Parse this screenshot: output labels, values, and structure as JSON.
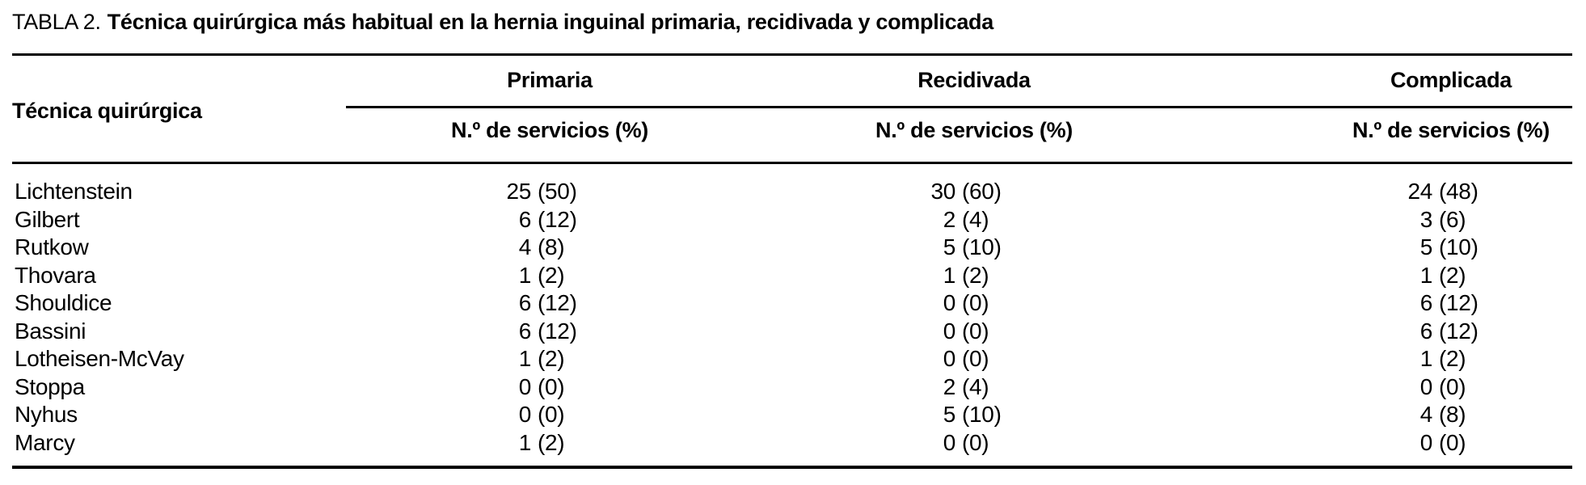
{
  "table": {
    "title_prefix": "TABLA 2.",
    "title_text": "Técnica quirúrgica más habitual en la hernia inguinal primaria, recidivada y complicada",
    "row_header": "Técnica quirúrgica",
    "groups": [
      {
        "label": "Primaria",
        "subheader": "N.º de servicios (%)"
      },
      {
        "label": "Recidivada",
        "subheader": "N.º de servicios (%)"
      },
      {
        "label": "Complicada",
        "subheader": "N.º de servicios (%)"
      }
    ],
    "rows": [
      {
        "name": "Lichtenstein",
        "primaria": {
          "n": "25",
          "pct": "(50)"
        },
        "recidivada": {
          "n": "30",
          "pct": "(60)"
        },
        "complicada": {
          "n": "24",
          "pct": "(48)"
        }
      },
      {
        "name": "Gilbert",
        "primaria": {
          "n": "6",
          "pct": "(12)"
        },
        "recidivada": {
          "n": "2",
          "pct": "(4)"
        },
        "complicada": {
          "n": "3",
          "pct": "(6)"
        }
      },
      {
        "name": "Rutkow",
        "primaria": {
          "n": "4",
          "pct": "(8)"
        },
        "recidivada": {
          "n": "5",
          "pct": "(10)"
        },
        "complicada": {
          "n": "5",
          "pct": "(10)"
        }
      },
      {
        "name": "Thovara",
        "primaria": {
          "n": "1",
          "pct": "(2)"
        },
        "recidivada": {
          "n": "1",
          "pct": "(2)"
        },
        "complicada": {
          "n": "1",
          "pct": "(2)"
        }
      },
      {
        "name": "Shouldice",
        "primaria": {
          "n": "6",
          "pct": "(12)"
        },
        "recidivada": {
          "n": "0",
          "pct": "(0)"
        },
        "complicada": {
          "n": "6",
          "pct": "(12)"
        }
      },
      {
        "name": "Bassini",
        "primaria": {
          "n": "6",
          "pct": "(12)"
        },
        "recidivada": {
          "n": "0",
          "pct": "(0)"
        },
        "complicada": {
          "n": "6",
          "pct": "(12)"
        }
      },
      {
        "name": "Lotheisen-McVay",
        "primaria": {
          "n": "1",
          "pct": "(2)"
        },
        "recidivada": {
          "n": "0",
          "pct": "(0)"
        },
        "complicada": {
          "n": "1",
          "pct": "(2)"
        }
      },
      {
        "name": "Stoppa",
        "primaria": {
          "n": "0",
          "pct": "(0)"
        },
        "recidivada": {
          "n": "2",
          "pct": "(4)"
        },
        "complicada": {
          "n": "0",
          "pct": "(0)"
        }
      },
      {
        "name": "Nyhus",
        "primaria": {
          "n": "0",
          "pct": "(0)"
        },
        "recidivada": {
          "n": "5",
          "pct": "(10)"
        },
        "complicada": {
          "n": "4",
          "pct": "(8)"
        }
      },
      {
        "name": "Marcy",
        "primaria": {
          "n": "1",
          "pct": "(2)"
        },
        "recidivada": {
          "n": "0",
          "pct": "(0)"
        },
        "complicada": {
          "n": "0",
          "pct": "(0)"
        }
      }
    ],
    "text_color": "#000000",
    "background_color": "#ffffff"
  }
}
